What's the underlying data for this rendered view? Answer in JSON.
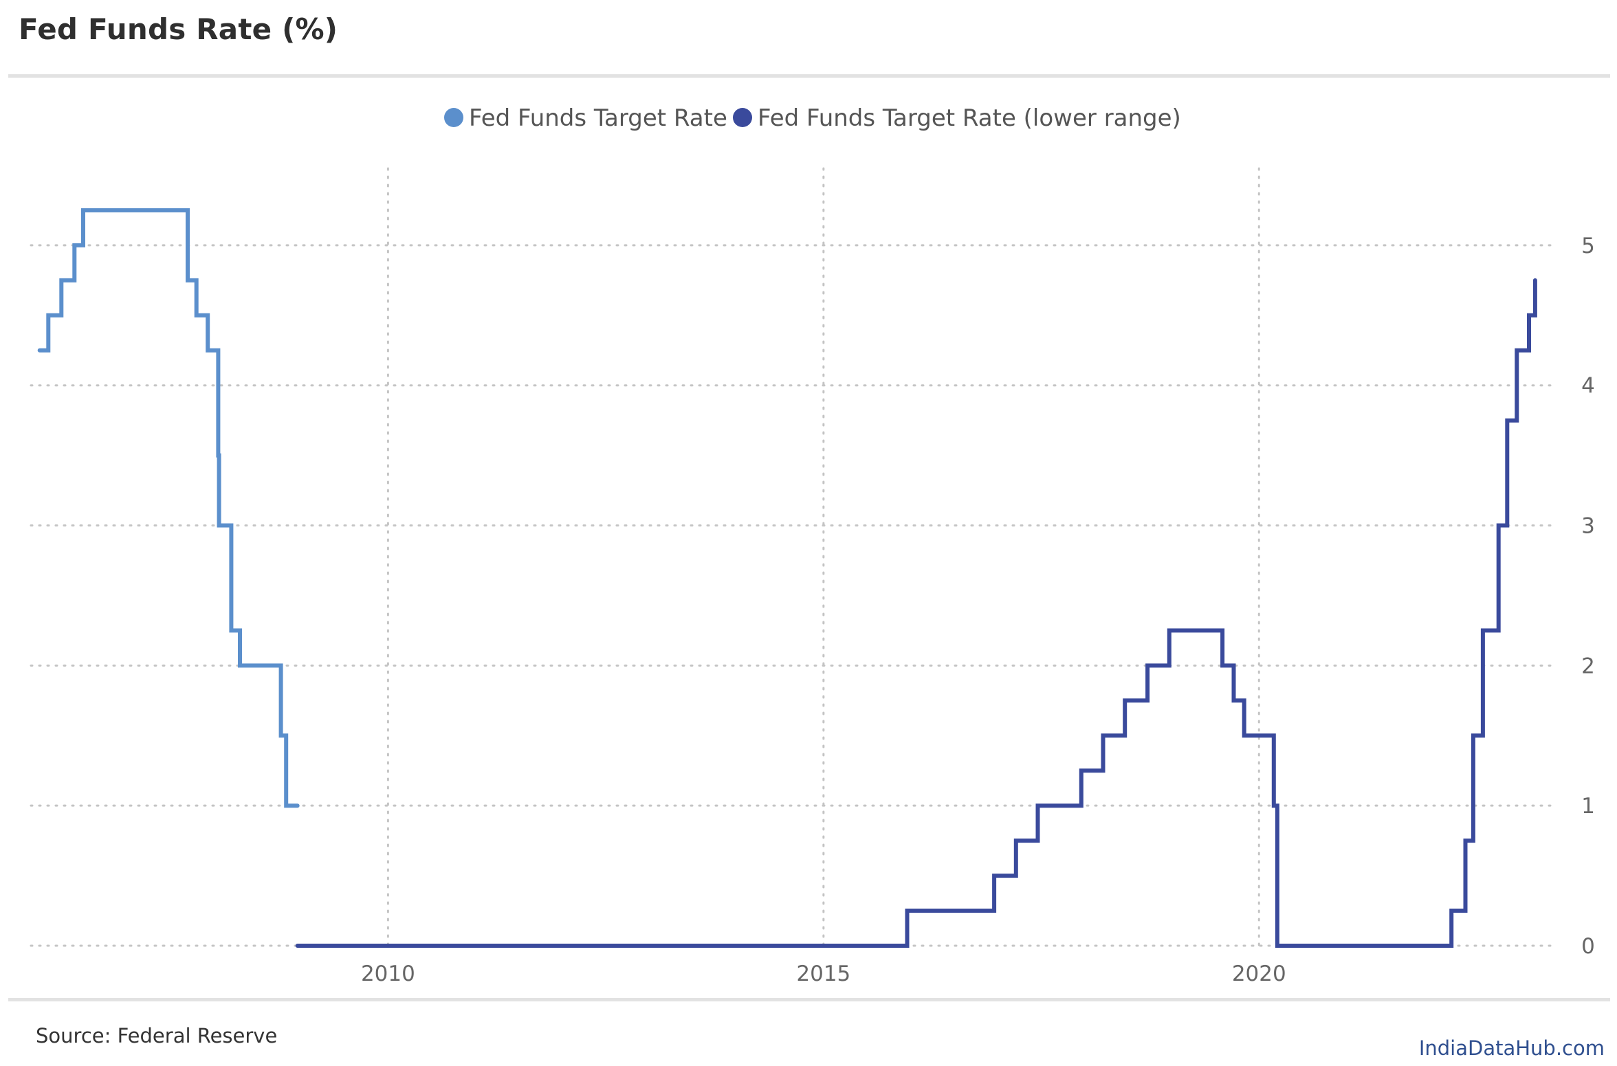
{
  "header": {
    "title": "Fed Funds Rate (%)"
  },
  "footer": {
    "source": "Source: Federal Reserve",
    "brand": "IndiaDataHub.com"
  },
  "chart_data": {
    "type": "line",
    "title": "Fed Funds Rate (%)",
    "xlabel": "",
    "ylabel": "",
    "xlim": [
      2005.9,
      2023.4
    ],
    "ylim": [
      0,
      5.5
    ],
    "x_ticks": [
      2010,
      2015,
      2020
    ],
    "y_ticks": [
      0,
      1,
      2,
      3,
      4,
      5
    ],
    "y_axis_side": "right",
    "grid": true,
    "legend_position": "top-center",
    "step": true,
    "series": [
      {
        "name": "Fed Funds Target Rate",
        "color": "#5b8fcc",
        "points": [
          [
            2006.0,
            4.25
          ],
          [
            2006.1,
            4.5
          ],
          [
            2006.25,
            4.75
          ],
          [
            2006.4,
            5.0
          ],
          [
            2006.5,
            5.25
          ],
          [
            2007.7,
            4.75
          ],
          [
            2007.8,
            4.5
          ],
          [
            2007.93,
            4.25
          ],
          [
            2008.05,
            3.5
          ],
          [
            2008.06,
            3.0
          ],
          [
            2008.2,
            2.25
          ],
          [
            2008.3,
            2.0
          ],
          [
            2008.77,
            1.5
          ],
          [
            2008.83,
            1.0
          ],
          [
            2008.96,
            1.0
          ]
        ]
      },
      {
        "name": "Fed Funds Target Rate (lower range)",
        "color": "#3a4a9c",
        "points": [
          [
            2008.96,
            0.0
          ],
          [
            2015.96,
            0.25
          ],
          [
            2016.96,
            0.5
          ],
          [
            2017.21,
            0.75
          ],
          [
            2017.46,
            1.0
          ],
          [
            2017.96,
            1.25
          ],
          [
            2018.21,
            1.5
          ],
          [
            2018.46,
            1.75
          ],
          [
            2018.72,
            2.0
          ],
          [
            2018.97,
            2.25
          ],
          [
            2019.58,
            2.0
          ],
          [
            2019.71,
            1.75
          ],
          [
            2019.83,
            1.5
          ],
          [
            2020.17,
            1.0
          ],
          [
            2020.21,
            0.0
          ],
          [
            2022.21,
            0.25
          ],
          [
            2022.37,
            0.75
          ],
          [
            2022.46,
            1.5
          ],
          [
            2022.57,
            2.25
          ],
          [
            2022.75,
            3.0
          ],
          [
            2022.85,
            3.75
          ],
          [
            2022.96,
            4.25
          ],
          [
            2023.1,
            4.5
          ],
          [
            2023.17,
            4.75
          ]
        ]
      }
    ]
  }
}
